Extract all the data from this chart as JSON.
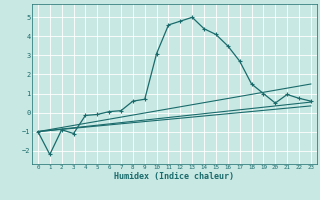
{
  "title": "",
  "xlabel": "Humidex (Indice chaleur)",
  "xlim": [
    -0.5,
    23.5
  ],
  "ylim": [
    -2.7,
    5.7
  ],
  "yticks": [
    -2,
    -1,
    0,
    1,
    2,
    3,
    4,
    5
  ],
  "xticks": [
    0,
    1,
    2,
    3,
    4,
    5,
    6,
    7,
    8,
    9,
    10,
    11,
    12,
    13,
    14,
    15,
    16,
    17,
    18,
    19,
    20,
    21,
    22,
    23
  ],
  "bg_color": "#c8e8e4",
  "grid_color": "#b0d0cc",
  "line_color": "#1a6b6b",
  "main_line": {
    "x": [
      0,
      1,
      2,
      3,
      4,
      5,
      6,
      7,
      8,
      9,
      10,
      11,
      12,
      13,
      14,
      15,
      16,
      17,
      18,
      19,
      20,
      21,
      22,
      23
    ],
    "y": [
      -1.0,
      -2.2,
      -0.9,
      -1.1,
      -0.15,
      -0.1,
      0.05,
      0.1,
      0.6,
      0.7,
      3.1,
      4.6,
      4.8,
      5.0,
      4.4,
      4.1,
      3.5,
      2.7,
      1.5,
      1.0,
      0.5,
      0.95,
      0.75,
      0.6
    ]
  },
  "flat_lines": [
    {
      "x": [
        0,
        23
      ],
      "y": [
        -1.0,
        1.5
      ]
    },
    {
      "x": [
        0,
        23
      ],
      "y": [
        -1.0,
        0.55
      ]
    },
    {
      "x": [
        0,
        23
      ],
      "y": [
        -1.0,
        0.35
      ]
    }
  ]
}
